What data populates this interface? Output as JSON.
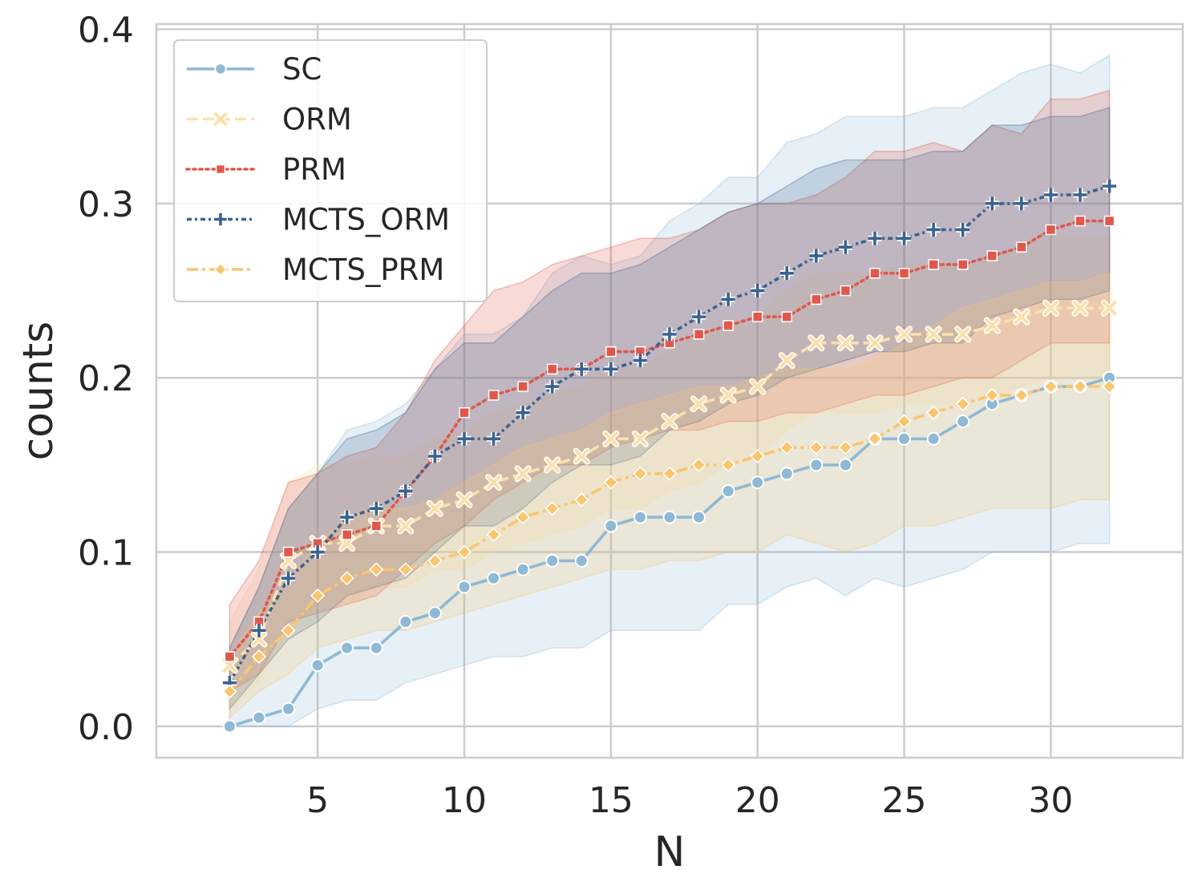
{
  "chart_data": {
    "type": "line",
    "xlabel": "N",
    "ylabel": "counts",
    "xlim": [
      -0.5,
      34.5
    ],
    "ylim": [
      -0.018,
      0.403
    ],
    "xticks": [
      "5",
      "10",
      "15",
      "20",
      "25",
      "30"
    ],
    "yticks": [
      "0.0",
      "0.1",
      "0.2",
      "0.3",
      "0.4"
    ],
    "grid": true,
    "legend_position": "top-left",
    "x": [
      2,
      3,
      4,
      5,
      6,
      7,
      8,
      9,
      10,
      11,
      12,
      13,
      14,
      15,
      16,
      17,
      18,
      19,
      20,
      21,
      22,
      23,
      24,
      25,
      26,
      27,
      28,
      29,
      30,
      31,
      32
    ],
    "series": [
      {
        "name": "SC",
        "color": "#8fb9d4",
        "dash": "solid",
        "marker": "circle",
        "values": [
          0.0,
          0.005,
          0.01,
          0.035,
          0.045,
          0.045,
          0.06,
          0.065,
          0.08,
          0.085,
          0.09,
          0.095,
          0.095,
          0.115,
          0.12,
          0.12,
          0.12,
          0.135,
          0.14,
          0.145,
          0.15,
          0.15,
          0.165,
          0.165,
          0.165,
          0.175,
          0.185,
          0.19,
          0.195,
          0.195,
          0.2
        ],
        "lower": [
          0.0,
          0.0,
          0.0,
          0.01,
          0.015,
          0.015,
          0.025,
          0.03,
          0.035,
          0.04,
          0.04,
          0.045,
          0.045,
          0.055,
          0.055,
          0.055,
          0.055,
          0.07,
          0.07,
          0.08,
          0.085,
          0.075,
          0.085,
          0.08,
          0.085,
          0.09,
          0.1,
          0.1,
          0.1,
          0.105,
          0.105
        ],
        "upper": [
          0.045,
          0.08,
          0.125,
          0.145,
          0.17,
          0.175,
          0.185,
          0.205,
          0.225,
          0.225,
          0.235,
          0.26,
          0.27,
          0.265,
          0.27,
          0.29,
          0.3,
          0.315,
          0.315,
          0.335,
          0.34,
          0.35,
          0.35,
          0.35,
          0.355,
          0.355,
          0.365,
          0.375,
          0.38,
          0.375,
          0.385
        ]
      },
      {
        "name": "ORM",
        "color": "#fbe0ab",
        "dash": "dashed",
        "marker": "x",
        "values": [
          0.035,
          0.05,
          0.095,
          0.105,
          0.105,
          0.115,
          0.115,
          0.125,
          0.13,
          0.14,
          0.145,
          0.15,
          0.155,
          0.165,
          0.165,
          0.175,
          0.185,
          0.19,
          0.195,
          0.21,
          0.22,
          0.22,
          0.22,
          0.225,
          0.225,
          0.225,
          0.23,
          0.235,
          0.24,
          0.24,
          0.24
        ],
        "lower": [
          0.01,
          0.025,
          0.055,
          0.07,
          0.07,
          0.08,
          0.08,
          0.09,
          0.09,
          0.1,
          0.105,
          0.11,
          0.115,
          0.125,
          0.125,
          0.135,
          0.14,
          0.15,
          0.155,
          0.17,
          0.18,
          0.18,
          0.18,
          0.185,
          0.185,
          0.185,
          0.19,
          0.195,
          0.2,
          0.2,
          0.2
        ],
        "upper": [
          0.06,
          0.09,
          0.14,
          0.15,
          0.15,
          0.155,
          0.155,
          0.165,
          0.17,
          0.18,
          0.185,
          0.19,
          0.195,
          0.205,
          0.205,
          0.215,
          0.225,
          0.23,
          0.235,
          0.25,
          0.26,
          0.26,
          0.26,
          0.265,
          0.265,
          0.265,
          0.27,
          0.275,
          0.28,
          0.28,
          0.28
        ]
      },
      {
        "name": "PRM",
        "color": "#e0584b",
        "dash": "dotted",
        "marker": "square",
        "values": [
          0.04,
          0.06,
          0.1,
          0.105,
          0.11,
          0.115,
          0.135,
          0.155,
          0.18,
          0.19,
          0.195,
          0.205,
          0.205,
          0.215,
          0.215,
          0.22,
          0.225,
          0.23,
          0.235,
          0.235,
          0.245,
          0.25,
          0.26,
          0.26,
          0.265,
          0.265,
          0.27,
          0.275,
          0.285,
          0.29,
          0.29
        ],
        "lower": [
          0.02,
          0.03,
          0.06,
          0.065,
          0.07,
          0.075,
          0.09,
          0.105,
          0.115,
          0.13,
          0.14,
          0.15,
          0.15,
          0.16,
          0.165,
          0.17,
          0.17,
          0.175,
          0.175,
          0.18,
          0.18,
          0.185,
          0.19,
          0.19,
          0.195,
          0.2,
          0.2,
          0.21,
          0.22,
          0.22,
          0.22
        ],
        "upper": [
          0.07,
          0.095,
          0.14,
          0.145,
          0.155,
          0.16,
          0.18,
          0.21,
          0.23,
          0.25,
          0.255,
          0.265,
          0.27,
          0.275,
          0.28,
          0.28,
          0.285,
          0.295,
          0.3,
          0.3,
          0.305,
          0.315,
          0.33,
          0.33,
          0.335,
          0.33,
          0.345,
          0.34,
          0.36,
          0.36,
          0.365
        ]
      },
      {
        "name": "MCTS_ORM",
        "color": "#3c628f",
        "dash": "dashdot-dense",
        "marker": "plus",
        "values": [
          0.025,
          0.055,
          0.085,
          0.1,
          0.12,
          0.125,
          0.135,
          0.155,
          0.165,
          0.165,
          0.18,
          0.195,
          0.205,
          0.205,
          0.21,
          0.225,
          0.235,
          0.245,
          0.25,
          0.26,
          0.27,
          0.275,
          0.28,
          0.28,
          0.285,
          0.285,
          0.3,
          0.3,
          0.305,
          0.305,
          0.31
        ],
        "lower": [
          0.01,
          0.03,
          0.05,
          0.06,
          0.075,
          0.08,
          0.085,
          0.1,
          0.115,
          0.115,
          0.125,
          0.14,
          0.15,
          0.15,
          0.155,
          0.17,
          0.175,
          0.185,
          0.19,
          0.2,
          0.205,
          0.21,
          0.215,
          0.215,
          0.22,
          0.22,
          0.235,
          0.24,
          0.245,
          0.245,
          0.25
        ],
        "upper": [
          0.045,
          0.08,
          0.125,
          0.145,
          0.165,
          0.17,
          0.18,
          0.205,
          0.22,
          0.22,
          0.235,
          0.25,
          0.26,
          0.26,
          0.265,
          0.275,
          0.285,
          0.295,
          0.3,
          0.31,
          0.32,
          0.325,
          0.325,
          0.325,
          0.33,
          0.33,
          0.345,
          0.345,
          0.35,
          0.35,
          0.355
        ]
      },
      {
        "name": "MCTS_PRM",
        "color": "#f9c66f",
        "dash": "dashdot",
        "marker": "diamond",
        "values": [
          0.02,
          0.04,
          0.055,
          0.075,
          0.085,
          0.09,
          0.09,
          0.095,
          0.1,
          0.11,
          0.12,
          0.125,
          0.13,
          0.14,
          0.145,
          0.145,
          0.15,
          0.15,
          0.155,
          0.16,
          0.16,
          0.16,
          0.165,
          0.175,
          0.18,
          0.185,
          0.19,
          0.19,
          0.195,
          0.195,
          0.195
        ],
        "lower": [
          0.005,
          0.02,
          0.03,
          0.045,
          0.05,
          0.055,
          0.055,
          0.06,
          0.065,
          0.07,
          0.075,
          0.08,
          0.085,
          0.09,
          0.09,
          0.095,
          0.095,
          0.1,
          0.1,
          0.11,
          0.105,
          0.1,
          0.105,
          0.115,
          0.115,
          0.12,
          0.125,
          0.125,
          0.125,
          0.13,
          0.13
        ],
        "upper": [
          0.04,
          0.065,
          0.085,
          0.105,
          0.12,
          0.125,
          0.125,
          0.13,
          0.14,
          0.15,
          0.16,
          0.165,
          0.17,
          0.18,
          0.185,
          0.19,
          0.195,
          0.195,
          0.2,
          0.205,
          0.205,
          0.205,
          0.21,
          0.22,
          0.23,
          0.24,
          0.245,
          0.25,
          0.255,
          0.255,
          0.26
        ]
      }
    ]
  }
}
